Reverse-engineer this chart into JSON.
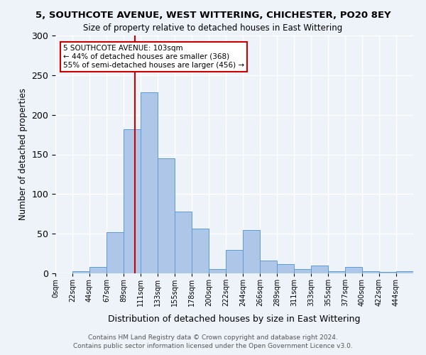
{
  "title": "5, SOUTHCOTE AVENUE, WEST WITTERING, CHICHESTER, PO20 8EY",
  "subtitle": "Size of property relative to detached houses in East Wittering",
  "xlabel": "Distribution of detached houses by size in East Wittering",
  "ylabel": "Number of detached properties",
  "footnote1": "Contains HM Land Registry data © Crown copyright and database right 2024.",
  "footnote2": "Contains public sector information licensed under the Open Government Licence v3.0.",
  "bin_labels": [
    "0sqm",
    "22sqm",
    "44sqm",
    "67sqm",
    "89sqm",
    "111sqm",
    "133sqm",
    "155sqm",
    "178sqm",
    "200sqm",
    "222sqm",
    "244sqm",
    "266sqm",
    "289sqm",
    "311sqm",
    "333sqm",
    "355sqm",
    "377sqm",
    "400sqm",
    "422sqm",
    "444sqm"
  ],
  "bar_values": [
    0,
    3,
    8,
    52,
    182,
    228,
    145,
    78,
    56,
    5,
    30,
    55,
    16,
    12,
    5,
    10,
    3,
    8,
    3,
    2,
    3
  ],
  "bar_color": "#aec6e8",
  "bar_edge_color": "#5b9bd5",
  "vline_x": 103,
  "vline_color": "#cc0000",
  "annotation_text": "5 SOUTHCOTE AVENUE: 103sqm\n← 44% of detached houses are smaller (368)\n55% of semi-detached houses are larger (456) →",
  "annotation_box_color": "#ffffff",
  "annotation_box_edge": "#cc0000",
  "ylim": [
    0,
    300
  ],
  "bg_color": "#eef3f9",
  "plot_bg_color": "#eef3f9",
  "grid_color": "#ffffff",
  "bin_width": 22
}
